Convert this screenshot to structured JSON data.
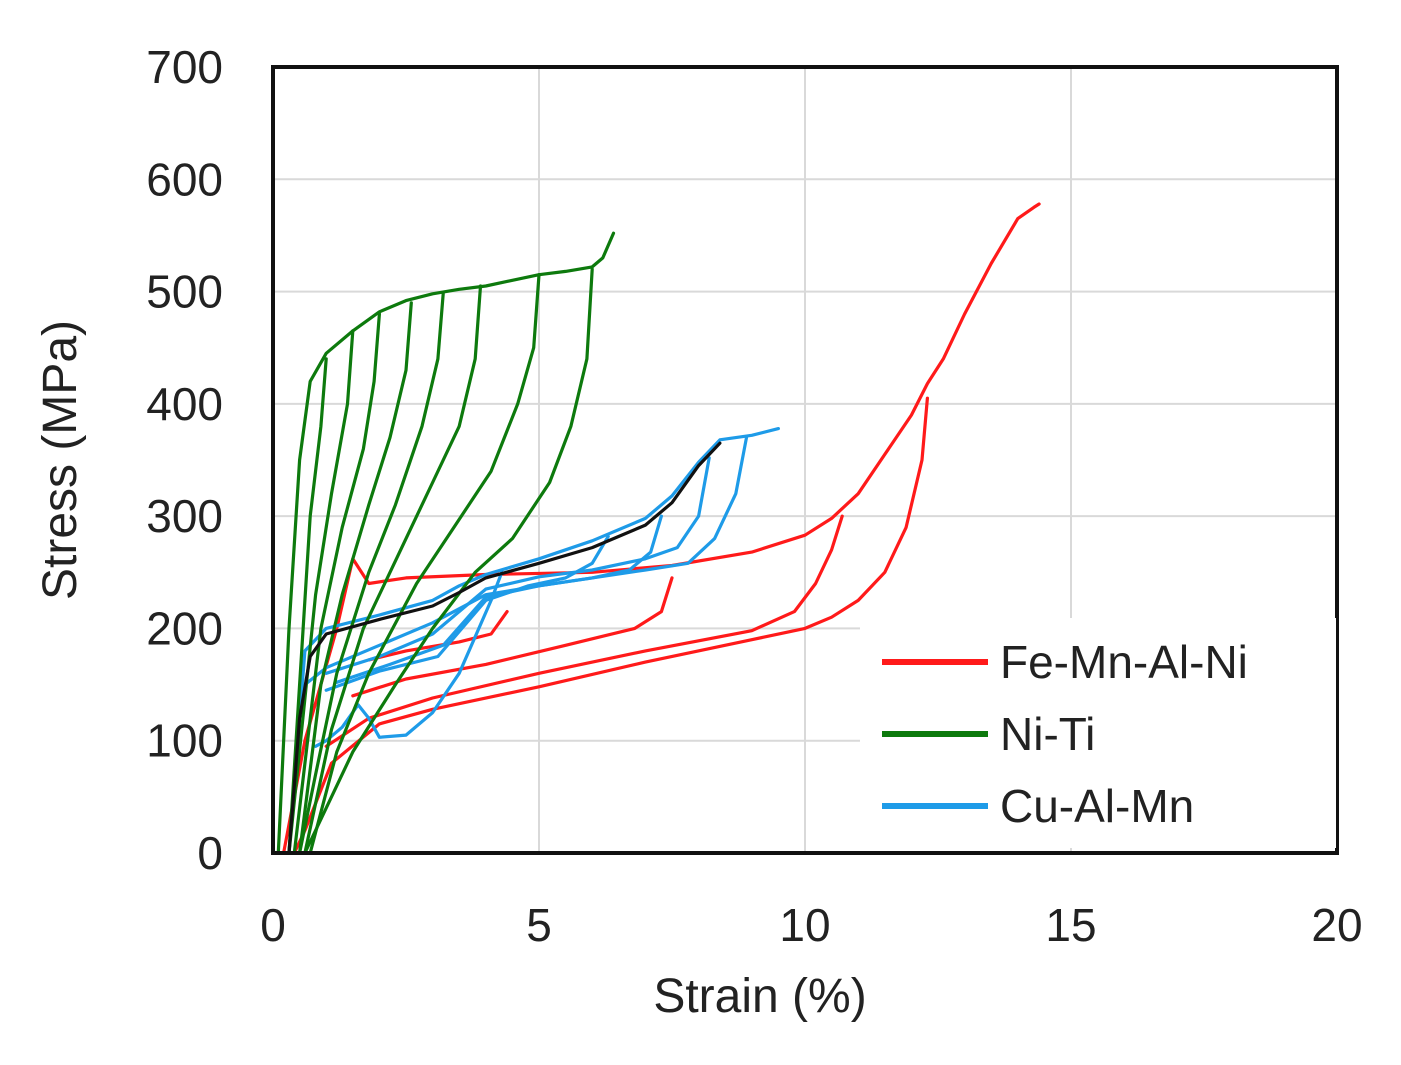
{
  "chart_data": {
    "type": "line",
    "title": "",
    "xlabel": "Strain (%)",
    "ylabel": "Stress (MPa)",
    "xlim": [
      0,
      20
    ],
    "ylim": [
      0,
      700
    ],
    "x_ticks": [
      "0",
      "5",
      "10",
      "15",
      "20"
    ],
    "y_ticks": [
      "0",
      "100",
      "200",
      "300",
      "400",
      "500",
      "600",
      "700"
    ],
    "grid": true,
    "legend_position": "bottom-right",
    "series": [
      {
        "name": "Fe-Mn-Al-Ni",
        "color": "#ff1a1a",
        "curves": [
          [
            [
              0.2,
              0
            ],
            [
              0.6,
              100
            ],
            [
              1.2,
              200
            ],
            [
              1.5,
              262
            ],
            [
              1.8,
              240
            ],
            [
              2.5,
              245
            ],
            [
              4,
              248
            ],
            [
              6,
              250
            ],
            [
              7.5,
              256
            ],
            [
              9,
              268
            ],
            [
              10,
              283
            ],
            [
              10.5,
              298
            ],
            [
              11,
              320
            ],
            [
              11.5,
              355
            ],
            [
              12,
              390
            ],
            [
              12.3,
              418
            ],
            [
              12.6,
              440
            ],
            [
              13,
              480
            ],
            [
              13.5,
              525
            ],
            [
              14,
              565
            ],
            [
              14.3,
              575
            ],
            [
              14.4,
              578
            ]
          ],
          [
            [
              12.3,
              405
            ],
            [
              12.2,
              350
            ],
            [
              11.9,
              290
            ],
            [
              11.5,
              250
            ],
            [
              11,
              225
            ],
            [
              10.5,
              210
            ],
            [
              10,
              200
            ],
            [
              9,
              190
            ],
            [
              7,
              170
            ],
            [
              5,
              148
            ],
            [
              3,
              128
            ],
            [
              2,
              115
            ],
            [
              1.1,
              80
            ],
            [
              0.6,
              20
            ],
            [
              0.4,
              0
            ]
          ],
          [
            [
              10.7,
              300
            ],
            [
              10.5,
              270
            ],
            [
              10.2,
              240
            ],
            [
              9.8,
              215
            ],
            [
              9,
              198
            ],
            [
              7,
              180
            ],
            [
              5,
              160
            ],
            [
              3,
              138
            ],
            [
              1.8,
              120
            ],
            [
              1,
              95
            ]
          ],
          [
            [
              7.5,
              245
            ],
            [
              7.3,
              215
            ],
            [
              6.8,
              200
            ],
            [
              5.5,
              185
            ],
            [
              4,
              168
            ],
            [
              2.5,
              155
            ],
            [
              1.5,
              140
            ]
          ],
          [
            [
              4.4,
              215
            ],
            [
              4.1,
              195
            ],
            [
              3.5,
              188
            ],
            [
              2.5,
              180
            ],
            [
              1.8,
              172
            ]
          ]
        ]
      },
      {
        "name": "Ni-Ti",
        "color": "#0d7a0d",
        "curves": [
          [
            [
              0.1,
              0
            ],
            [
              0.3,
              200
            ],
            [
              0.5,
              350
            ],
            [
              0.7,
              420
            ],
            [
              1,
              445
            ],
            [
              1.5,
              465
            ],
            [
              2,
              482
            ],
            [
              2.5,
              492
            ],
            [
              3,
              498
            ],
            [
              3.5,
              502
            ],
            [
              4,
              505
            ],
            [
              4.5,
              510
            ],
            [
              5,
              515
            ],
            [
              5.5,
              518
            ],
            [
              6,
              522
            ],
            [
              6.2,
              530
            ],
            [
              6.4,
              552
            ]
          ],
          [
            [
              6,
              520
            ],
            [
              5.9,
              440
            ],
            [
              5.6,
              380
            ],
            [
              5.2,
              330
            ],
            [
              4.5,
              280
            ],
            [
              3.8,
              250
            ],
            [
              3,
              200
            ],
            [
              2.3,
              150
            ],
            [
              1.5,
              90
            ],
            [
              1,
              40
            ],
            [
              0.6,
              0
            ]
          ],
          [
            [
              5,
              515
            ],
            [
              4.9,
              450
            ],
            [
              4.6,
              400
            ],
            [
              4.1,
              340
            ],
            [
              3.4,
              290
            ],
            [
              2.7,
              240
            ],
            [
              1.8,
              160
            ],
            [
              1.2,
              90
            ],
            [
              0.7,
              0
            ]
          ],
          [
            [
              3.9,
              505
            ],
            [
              3.8,
              440
            ],
            [
              3.5,
              380
            ],
            [
              3,
              330
            ],
            [
              2.4,
              270
            ],
            [
              1.7,
              200
            ],
            [
              1.1,
              110
            ],
            [
              0.6,
              0
            ]
          ],
          [
            [
              3.2,
              498
            ],
            [
              3.1,
              440
            ],
            [
              2.8,
              380
            ],
            [
              2.3,
              310
            ],
            [
              1.8,
              250
            ],
            [
              1.2,
              160
            ],
            [
              0.8,
              70
            ],
            [
              0.5,
              0
            ]
          ],
          [
            [
              2.6,
              490
            ],
            [
              2.5,
              430
            ],
            [
              2.2,
              370
            ],
            [
              1.8,
              310
            ],
            [
              1.3,
              230
            ],
            [
              0.9,
              150
            ],
            [
              0.5,
              0
            ]
          ],
          [
            [
              2,
              480
            ],
            [
              1.9,
              420
            ],
            [
              1.7,
              360
            ],
            [
              1.3,
              290
            ],
            [
              0.9,
              200
            ],
            [
              0.4,
              0
            ]
          ],
          [
            [
              1.5,
              465
            ],
            [
              1.4,
              400
            ],
            [
              1.1,
              320
            ],
            [
              0.8,
              230
            ],
            [
              0.3,
              0
            ]
          ],
          [
            [
              1,
              440
            ],
            [
              0.9,
              380
            ],
            [
              0.7,
              300
            ],
            [
              0.3,
              0
            ]
          ]
        ]
      },
      {
        "name": "Cu-Al-Mn",
        "color": "#1e9be8",
        "curves": [
          [
            [
              0.3,
              0
            ],
            [
              0.6,
              180
            ],
            [
              1,
              200
            ],
            [
              2,
              212
            ],
            [
              3,
              225
            ],
            [
              3.5,
              238
            ],
            [
              4,
              248
            ],
            [
              5,
              262
            ],
            [
              6,
              278
            ],
            [
              7,
              298
            ],
            [
              7.5,
              318
            ],
            [
              8,
              348
            ],
            [
              8.4,
              368
            ],
            [
              9,
              372
            ],
            [
              9.5,
              378
            ]
          ],
          [
            [
              8.9,
              370
            ],
            [
              8.7,
              320
            ],
            [
              8.3,
              280
            ],
            [
              7.8,
              258
            ],
            [
              7,
              252
            ],
            [
              6,
              245
            ],
            [
              5,
              238
            ],
            [
              4,
              230
            ],
            [
              3,
              205
            ],
            [
              2,
              185
            ],
            [
              1,
              165
            ],
            [
              0.6,
              150
            ]
          ],
          [
            [
              8.2,
              352
            ],
            [
              8,
              300
            ],
            [
              7.6,
              272
            ],
            [
              7,
              262
            ],
            [
              6,
              252
            ],
            [
              5,
              246
            ],
            [
              4,
              235
            ],
            [
              3,
              195
            ],
            [
              2,
              175
            ],
            [
              1,
              160
            ]
          ],
          [
            [
              7.3,
              300
            ],
            [
              7.1,
              268
            ],
            [
              6.7,
              252
            ],
            [
              6,
              245
            ],
            [
              5,
              238
            ],
            [
              4,
              228
            ],
            [
              3.2,
              185
            ],
            [
              2.2,
              168
            ],
            [
              1.2,
              152
            ]
          ],
          [
            [
              6.3,
              282
            ],
            [
              6,
              258
            ],
            [
              5.5,
              245
            ],
            [
              4.8,
              238
            ],
            [
              4,
              225
            ],
            [
              3.1,
              175
            ],
            [
              2,
              162
            ],
            [
              1,
              145
            ]
          ],
          [
            [
              4.3,
              250
            ],
            [
              4.1,
              225
            ],
            [
              3.5,
              160
            ],
            [
              3,
              125
            ],
            [
              2.5,
              105
            ],
            [
              2,
              103
            ],
            [
              1.8,
              120
            ],
            [
              1.6,
              132
            ],
            [
              1.3,
              112
            ],
            [
              1,
              100
            ],
            [
              0.8,
              95
            ]
          ]
        ]
      }
    ],
    "highlight": {
      "color": "#111111",
      "points": [
        [
          0.3,
          0
        ],
        [
          0.5,
          120
        ],
        [
          0.7,
          175
        ],
        [
          1,
          195
        ],
        [
          2,
          208
        ],
        [
          3,
          220
        ],
        [
          3.5,
          232
        ],
        [
          4,
          245
        ],
        [
          5,
          258
        ],
        [
          6,
          272
        ],
        [
          7,
          292
        ],
        [
          7.5,
          312
        ],
        [
          8,
          345
        ],
        [
          8.4,
          365
        ]
      ]
    }
  }
}
